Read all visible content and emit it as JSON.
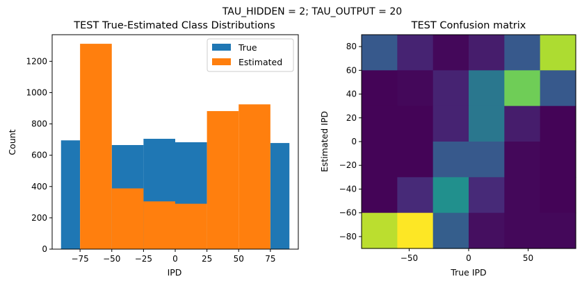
{
  "suptitle": "TAU_HIDDEN = 2; TAU_OUTPUT = 20",
  "chart_data": [
    {
      "type": "bar",
      "title": "TEST True-Estimated Class Distributions",
      "xlabel": "IPD",
      "ylabel": "Count",
      "xlim": [
        -97,
        97
      ],
      "ylim": [
        0,
        1370
      ],
      "xticks": [
        -75,
        -50,
        -25,
        0,
        25,
        50,
        75
      ],
      "xtick_labels": [
        "−75",
        "−50",
        "−25",
        "0",
        "25",
        "50",
        "75"
      ],
      "yticks": [
        0,
        200,
        400,
        600,
        800,
        1000,
        1200
      ],
      "yticks_labels": [
        "0",
        "200",
        "400",
        "600",
        "800",
        "1000",
        "1200"
      ],
      "legend": "top-right",
      "series": [
        {
          "name": "True",
          "color": "#1f77b4",
          "bins": [
            {
              "x0": -90,
              "x1": -75,
              "value": 695
            },
            {
              "x0": -75,
              "x1": -50,
              "value": 0
            },
            {
              "x0": -50,
              "x1": -25,
              "value": 665
            },
            {
              "x0": -25,
              "x1": 0,
              "value": 705
            },
            {
              "x0": 0,
              "x1": 25,
              "value": 683
            },
            {
              "x0": 25,
              "x1": 50,
              "value": 0
            },
            {
              "x0": 50,
              "x1": 75,
              "value": 0
            },
            {
              "x0": 75,
              "x1": 90,
              "value": 678
            }
          ]
        },
        {
          "name": "Estimated",
          "color": "#ff7f0e",
          "bins": [
            {
              "x0": -75,
              "x1": -50,
              "value": 1312
            },
            {
              "x0": -50,
              "x1": -25,
              "value": 388
            },
            {
              "x0": -25,
              "x1": 0,
              "value": 305
            },
            {
              "x0": 0,
              "x1": 25,
              "value": 290
            },
            {
              "x0": 25,
              "x1": 50,
              "value": 882
            },
            {
              "x0": 50,
              "x1": 75,
              "value": 925
            }
          ]
        }
      ]
    },
    {
      "type": "heatmap",
      "title": "TEST Confusion matrix",
      "xlabel": "True IPD",
      "ylabel": "Estimated IPD",
      "xlim": [
        -90,
        90
      ],
      "ylim": [
        -90,
        90
      ],
      "xticks": [
        -50,
        0,
        50
      ],
      "xtick_labels": [
        "−50",
        "0",
        "50"
      ],
      "yticks": [
        -80,
        -60,
        -40,
        -20,
        0,
        20,
        40,
        60,
        80
      ],
      "ytick_labels": [
        "−80",
        "−60",
        "−40",
        "−20",
        "0",
        "20",
        "40",
        "60",
        "80"
      ],
      "colormap": "viridis",
      "x_edges": [
        -90,
        -60,
        -30,
        0,
        30,
        60,
        90
      ],
      "y_edges": [
        -90,
        -60,
        -30,
        0,
        30,
        60,
        90
      ],
      "values_top_to_bottom": [
        [
          0.28,
          0.1,
          0.02,
          0.08,
          0.28,
          0.88
        ],
        [
          0.01,
          0.02,
          0.1,
          0.4,
          0.78,
          0.28
        ],
        [
          0.01,
          0.01,
          0.1,
          0.4,
          0.08,
          0.01
        ],
        [
          0.01,
          0.01,
          0.28,
          0.28,
          0.02,
          0.01
        ],
        [
          0.01,
          0.12,
          0.5,
          0.12,
          0.02,
          0.01
        ],
        [
          0.9,
          1.0,
          0.3,
          0.04,
          0.02,
          0.02
        ]
      ]
    }
  ]
}
